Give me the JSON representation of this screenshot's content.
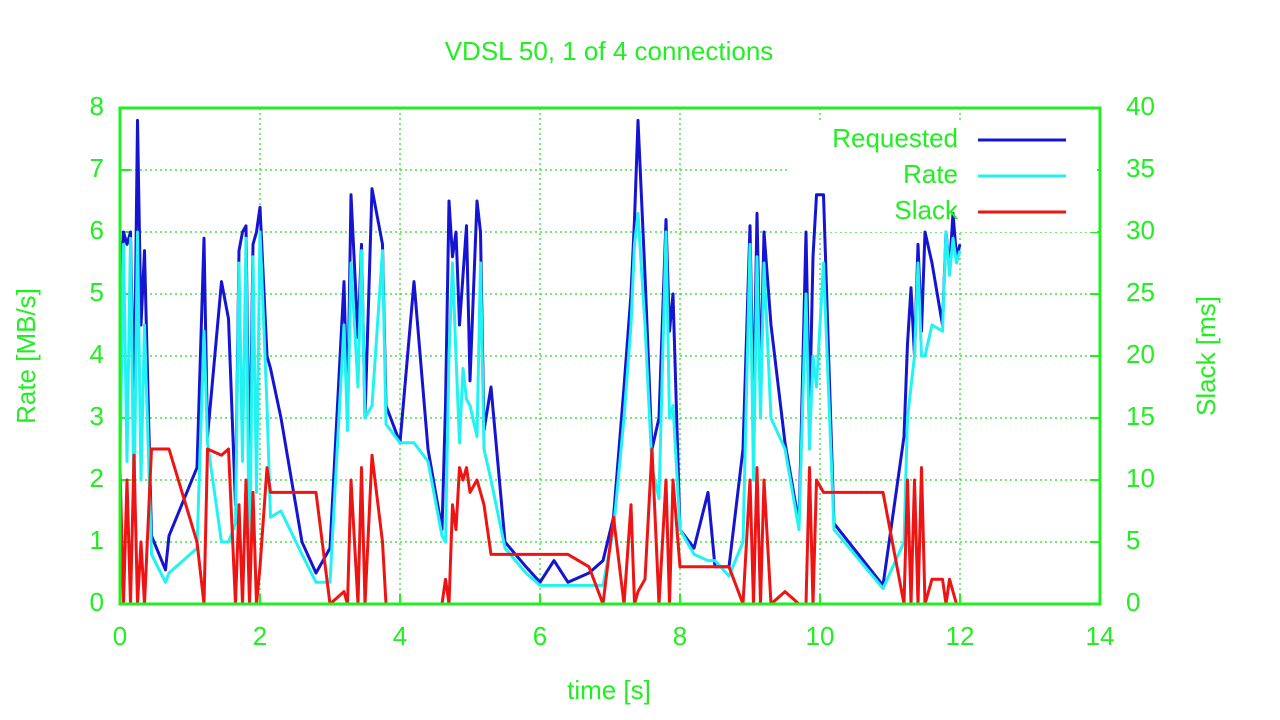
{
  "chart_data": {
    "type": "line",
    "title": "VDSL 50, 1 of 4 connections",
    "x_label": "time [s]",
    "y_label": "Rate [MB/s]",
    "y2_label": "Slack [ms]",
    "x": [
      0.0,
      0.05,
      0.1,
      0.15,
      0.2,
      0.25,
      0.3,
      0.35,
      0.45,
      0.65,
      0.7,
      1.1,
      1.2,
      1.25,
      1.45,
      1.55,
      1.65,
      1.7,
      1.75,
      1.8,
      1.85,
      1.9,
      1.95,
      2.0,
      2.1,
      2.15,
      2.3,
      2.6,
      2.8,
      3.0,
      3.2,
      3.25,
      3.3,
      3.4,
      3.45,
      3.5,
      3.6,
      3.75,
      3.8,
      4.0,
      4.2,
      4.4,
      4.6,
      4.65,
      4.7,
      4.75,
      4.8,
      4.85,
      4.9,
      4.95,
      5.0,
      5.1,
      5.15,
      5.2,
      5.3,
      5.5,
      5.8,
      6.0,
      6.2,
      6.4,
      6.7,
      6.9,
      7.05,
      7.2,
      7.3,
      7.35,
      7.4,
      7.5,
      7.6,
      7.7,
      7.8,
      7.85,
      7.9,
      8.0,
      8.2,
      8.4,
      8.5,
      8.7,
      8.9,
      9.0,
      9.05,
      9.1,
      9.15,
      9.2,
      9.3,
      9.5,
      9.7,
      9.8,
      9.85,
      9.9,
      9.95,
      10.05,
      10.2,
      10.9,
      11.2,
      11.25,
      11.3,
      11.35,
      11.4,
      11.45,
      11.5,
      11.6,
      11.75,
      11.8,
      11.85,
      11.9,
      11.95,
      12.0
    ],
    "series": [
      {
        "name": "Requested",
        "color": "#1414d2",
        "values": [
          4.6,
          6.0,
          5.8,
          6.0,
          3.0,
          7.8,
          4.5,
          5.7,
          1.1,
          0.55,
          1.1,
          2.2,
          5.9,
          2.7,
          5.2,
          4.6,
          1.6,
          5.7,
          6.0,
          6.1,
          1.8,
          5.8,
          6.0,
          6.4,
          4.0,
          3.8,
          3.0,
          1.0,
          0.5,
          0.9,
          5.2,
          3.0,
          6.6,
          4.3,
          5.8,
          3.0,
          6.7,
          5.8,
          3.2,
          2.6,
          5.2,
          2.5,
          1.2,
          3.2,
          6.5,
          5.6,
          6.0,
          4.5,
          5.3,
          6.1,
          3.6,
          6.5,
          6.0,
          2.8,
          3.5,
          1.0,
          0.6,
          0.35,
          0.7,
          0.35,
          0.5,
          0.7,
          1.4,
          3.5,
          5.0,
          6.2,
          7.8,
          5.3,
          2.5,
          3.0,
          6.2,
          4.4,
          5.0,
          1.2,
          0.9,
          1.8,
          0.6,
          0.6,
          2.5,
          6.1,
          3.0,
          6.3,
          3.5,
          6.0,
          4.5,
          2.6,
          1.3,
          6.0,
          3.0,
          5.6,
          6.6,
          6.6,
          1.3,
          0.3,
          2.7,
          4.2,
          5.1,
          4.0,
          5.8,
          4.4,
          6.0,
          5.5,
          4.5,
          6.0,
          5.4,
          6.3,
          5.6,
          5.8
        ]
      },
      {
        "name": "Rate",
        "color": "#22f2f2",
        "values": [
          2.3,
          5.8,
          2.3,
          5.9,
          1.5,
          6.0,
          2.0,
          4.5,
          0.8,
          0.35,
          0.5,
          0.9,
          4.4,
          2.6,
          1.0,
          1.0,
          1.3,
          5.5,
          2.3,
          5.9,
          0.1,
          5.6,
          1.8,
          6.0,
          3.2,
          1.4,
          1.5,
          0.8,
          0.35,
          0.35,
          4.5,
          2.8,
          5.5,
          3.5,
          5.7,
          3.0,
          3.2,
          5.7,
          2.9,
          2.6,
          2.6,
          2.3,
          1.1,
          1.0,
          4.0,
          5.5,
          4.0,
          2.6,
          3.8,
          3.3,
          3.2,
          2.7,
          5.5,
          2.5,
          2.0,
          0.9,
          0.5,
          0.3,
          0.3,
          0.3,
          0.3,
          0.3,
          1.2,
          3.0,
          4.5,
          5.8,
          6.3,
          4.5,
          2.2,
          1.7,
          6.0,
          3.0,
          3.2,
          1.2,
          0.8,
          0.7,
          0.7,
          0.45,
          1.0,
          5.8,
          2.0,
          5.6,
          3.0,
          5.5,
          3.0,
          2.5,
          1.2,
          5.0,
          2.5,
          4.0,
          3.5,
          5.5,
          1.2,
          0.25,
          1.0,
          3.0,
          3.5,
          4.0,
          5.5,
          4.0,
          4.0,
          4.5,
          4.4,
          6.0,
          5.3,
          5.9,
          5.5,
          5.7
        ]
      },
      {
        "name": "Slack",
        "color": "#ee1414",
        "axis": "y2",
        "values": [
          11,
          0,
          10,
          0,
          12,
          0,
          5,
          0,
          12.5,
          12.5,
          12.5,
          5,
          0,
          12.5,
          12,
          12.5,
          0,
          8,
          0,
          10,
          0,
          9,
          0,
          3,
          11,
          9,
          9,
          9,
          9,
          0,
          1,
          0,
          10,
          0,
          11,
          0,
          12,
          5,
          0,
          0,
          0,
          0,
          0,
          2,
          0,
          8,
          6,
          11,
          10,
          11,
          9,
          10,
          9,
          8,
          4,
          4,
          4,
          4,
          4,
          4,
          3,
          0,
          7,
          0,
          8,
          0,
          1,
          2,
          12.5,
          0,
          10,
          0,
          10,
          3,
          3,
          3,
          3,
          3,
          0,
          10,
          0,
          11,
          0,
          10,
          0,
          1,
          0,
          0,
          11,
          0,
          10,
          9,
          9,
          9,
          0,
          10,
          0,
          10,
          0,
          11,
          0,
          2,
          2,
          0,
          2,
          1,
          0,
          0
        ]
      }
    ],
    "xlim": [
      0,
      14
    ],
    "xticks": [
      0,
      2,
      4,
      6,
      8,
      10,
      12,
      14
    ],
    "ylim": [
      0,
      8
    ],
    "yticks": [
      0,
      1,
      2,
      3,
      4,
      5,
      6,
      7,
      8
    ],
    "y2lim": [
      0,
      40
    ],
    "y2ticks": [
      0,
      5,
      10,
      15,
      20,
      25,
      30,
      35,
      40
    ],
    "grid": true,
    "legend": "top-right"
  }
}
